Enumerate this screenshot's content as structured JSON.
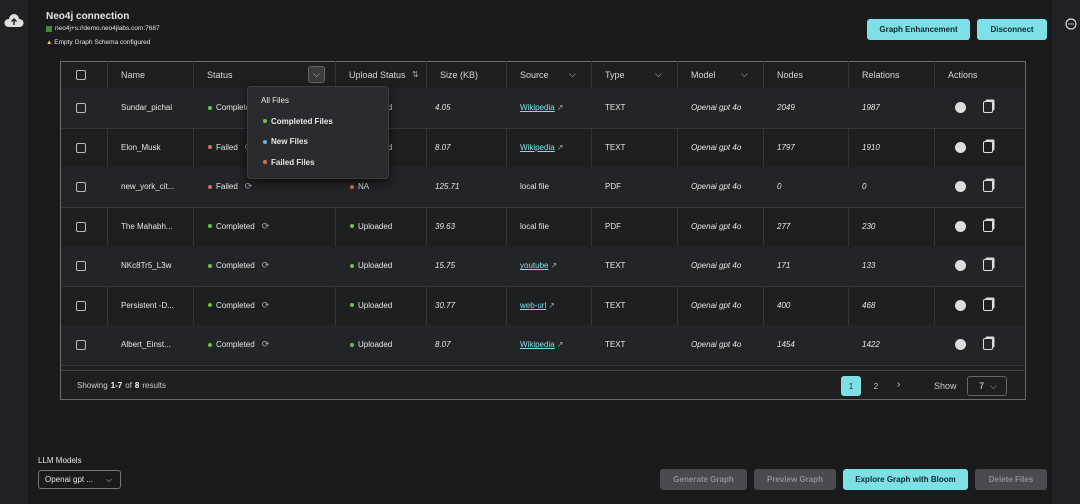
{
  "header": {
    "title": "Neo4j connection",
    "uri": "neo4j+s://demo.neo4jlabs.com:7687",
    "warning": "Empty Graph Schema configured",
    "buttons": [
      "Graph Enhancement",
      "Disconnect"
    ]
  },
  "table": {
    "columns": [
      "Name",
      "Status",
      "Upload Status",
      "Size (KB)",
      "Source",
      "Type",
      "Model",
      "Nodes",
      "Relations",
      "Actions"
    ],
    "rows": [
      {
        "name": "Sundar_pichai",
        "status": "Completed",
        "status_color": "#6cc04a",
        "upload_status": "Uploaded",
        "upload_color": "#6cc04a",
        "size_kb": 4.05,
        "source": "Wikipedia",
        "source_is_link": true,
        "type": "TEXT",
        "model": "Openai gpt 4o",
        "nodes": 2049,
        "relations": 1987
      },
      {
        "name": "Elon_Musk",
        "status": "Failed",
        "status_color": "#e0685c",
        "upload_status": "Uploaded",
        "upload_color": "#6cc04a",
        "size_kb": 8.07,
        "source": "Wikipedia",
        "source_is_link": true,
        "type": "TEXT",
        "model": "Openai gpt 4o",
        "nodes": 1797,
        "relations": 1910
      },
      {
        "name": "new_york_cit...",
        "status": "Failed",
        "status_color": "#e0685c",
        "upload_status": "NA",
        "upload_color": "#e0685c",
        "size_kb": 125.71,
        "source": "local file",
        "source_is_link": false,
        "type": "PDF",
        "model": "Openai gpt 4o",
        "nodes": 0,
        "relations": 0
      },
      {
        "name": "The Mahabh...",
        "status": "Completed",
        "status_color": "#6cc04a",
        "upload_status": "Uploaded",
        "upload_color": "#6cc04a",
        "size_kb": 39.63,
        "source": "local file",
        "source_is_link": false,
        "type": "PDF",
        "model": "Openai gpt 4o",
        "nodes": 277,
        "relations": 230
      },
      {
        "name": "NKc8Tr5_L3w",
        "status": "Completed",
        "status_color": "#6cc04a",
        "upload_status": "Uploaded",
        "upload_color": "#6cc04a",
        "size_kb": 15.75,
        "source": "youtube",
        "source_is_link": true,
        "type": "TEXT",
        "model": "Openai gpt 4o",
        "nodes": 171,
        "relations": 133
      },
      {
        "name": "Persistent -D...",
        "status": "Completed",
        "status_color": "#6cc04a",
        "upload_status": "Uploaded",
        "upload_color": "#6cc04a",
        "size_kb": 30.77,
        "source": "web-url",
        "source_is_link": true,
        "type": "TEXT",
        "model": "Openai gpt 4o",
        "nodes": 400,
        "relations": 468
      },
      {
        "name": "Albert_Einst...",
        "status": "Completed",
        "status_color": "#6cc04a",
        "upload_status": "Uploaded",
        "upload_color": "#6cc04a",
        "size_kb": 8.07,
        "source": "Wikipedia",
        "source_is_link": true,
        "type": "TEXT",
        "model": "Openai gpt 4o",
        "nodes": 1454,
        "relations": 1422
      }
    ]
  },
  "status_filter": {
    "options": [
      "All Files",
      "Completed Files",
      "New Files",
      "Failed Files"
    ],
    "dot_colors": [
      null,
      "#6cc04a",
      "#5fb8e0",
      "#e0685c"
    ]
  },
  "footer": {
    "showing": "Showing",
    "range": "1-7",
    "of": "of",
    "total": "8",
    "results": "results",
    "pages": [
      1,
      2
    ],
    "show_label": "Show",
    "page_size": 7
  },
  "llm": {
    "label": "LLM Models",
    "selected": "Openai gpt ..."
  },
  "actions": [
    "Generate Graph",
    "Preview Graph",
    "Explore Graph with Bloom",
    "Delete Files"
  ]
}
